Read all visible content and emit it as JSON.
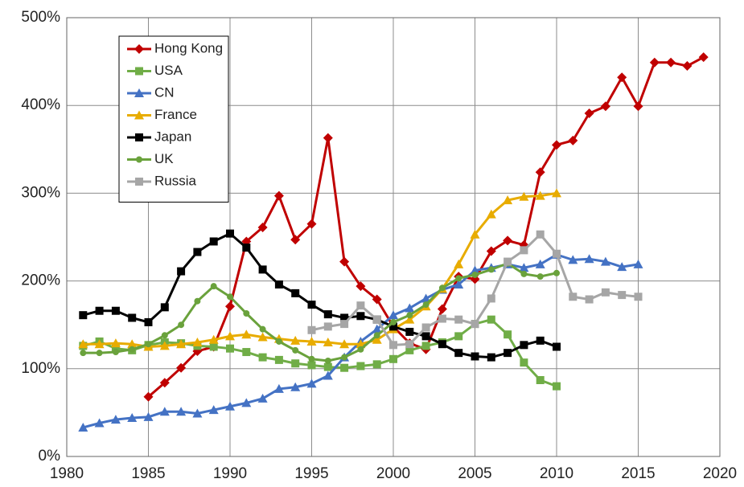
{
  "chart_data": {
    "type": "line",
    "x": [
      1981,
      1982,
      1983,
      1984,
      1985,
      1986,
      1987,
      1988,
      1989,
      1990,
      1991,
      1992,
      1993,
      1994,
      1995,
      1996,
      1997,
      1998,
      1999,
      2000,
      2001,
      2002,
      2003,
      2004,
      2005,
      2006,
      2007,
      2008,
      2009,
      2010,
      2011,
      2012,
      2013,
      2014,
      2015,
      2016,
      2017,
      2018,
      2019
    ],
    "series": [
      {
        "name": "Hong Kong",
        "color": "#c00000",
        "marker": "diamond",
        "values": [
          null,
          null,
          null,
          null,
          68,
          84,
          101,
          120,
          125,
          171,
          245,
          261,
          297,
          247,
          265,
          363,
          222,
          194,
          179,
          148,
          129,
          122,
          168,
          205,
          202,
          234,
          246,
          241,
          324,
          355,
          360,
          391,
          399,
          432,
          399,
          449,
          449,
          445,
          455
        ]
      },
      {
        "name": "USA",
        "color": "#70ad47",
        "marker": "square",
        "values": [
          126,
          131,
          123,
          121,
          127,
          130,
          129,
          126,
          125,
          123,
          119,
          113,
          110,
          106,
          104,
          102,
          101,
          103,
          105,
          111,
          121,
          126,
          130,
          137,
          151,
          156,
          139,
          107,
          87,
          80,
          null,
          null,
          null,
          null,
          null,
          null,
          null,
          null,
          null
        ]
      },
      {
        "name": "CN",
        "color": "#4472c4",
        "marker": "triangle",
        "values": [
          33,
          38,
          42,
          44,
          45,
          51,
          51,
          49,
          53,
          57,
          61,
          66,
          77,
          79,
          83,
          92,
          113,
          131,
          145,
          161,
          169,
          180,
          190,
          196,
          212,
          215,
          219,
          215,
          219,
          230,
          224,
          225,
          222,
          216,
          219,
          null,
          null,
          null,
          null
        ]
      },
      {
        "name": "France",
        "color": "#e8ac00",
        "marker": "triangle",
        "values": [
          128,
          128,
          129,
          128,
          125,
          126,
          128,
          130,
          133,
          137,
          139,
          136,
          134,
          132,
          131,
          130,
          128,
          128,
          133,
          145,
          156,
          171,
          191,
          219,
          253,
          276,
          292,
          296,
          297,
          300,
          null,
          null,
          null,
          null,
          null,
          null,
          null,
          null,
          null
        ]
      },
      {
        "name": "Japan",
        "color": "#000000",
        "marker": "square",
        "values": [
          161,
          166,
          166,
          158,
          153,
          170,
          211,
          233,
          245,
          254,
          238,
          213,
          196,
          186,
          173,
          162,
          158,
          160,
          156,
          148,
          142,
          137,
          128,
          118,
          114,
          113,
          118,
          127,
          132,
          125,
          null,
          null,
          null,
          null,
          null,
          null,
          null,
          null,
          null
        ]
      },
      {
        "name": "UK",
        "color": "#6aa23c",
        "marker": "circle",
        "values": [
          118,
          118,
          119,
          122,
          128,
          138,
          150,
          177,
          194,
          182,
          163,
          145,
          131,
          121,
          111,
          109,
          113,
          122,
          138,
          153,
          161,
          173,
          192,
          203,
          207,
          213,
          220,
          208,
          205,
          209,
          null,
          null,
          null,
          null,
          null,
          null,
          null,
          null,
          null
        ]
      },
      {
        "name": "Russia",
        "color": "#a6a6a6",
        "marker": "square",
        "values": [
          null,
          null,
          null,
          null,
          null,
          null,
          null,
          null,
          null,
          null,
          null,
          null,
          null,
          null,
          144,
          148,
          151,
          172,
          156,
          127,
          128,
          147,
          157,
          156,
          151,
          180,
          222,
          235,
          253,
          231,
          182,
          179,
          187,
          184,
          182,
          null,
          null,
          null,
          null
        ]
      }
    ],
    "xlim": [
      1980,
      2020
    ],
    "xticks": [
      1980,
      1985,
      1990,
      1995,
      2000,
      2005,
      2010,
      2015,
      2020
    ],
    "ylim": [
      0,
      500
    ],
    "yticks": [
      {
        "value": 0,
        "label": "0%"
      },
      {
        "value": 100,
        "label": "100%"
      },
      {
        "value": 200,
        "label": "200%"
      },
      {
        "value": 300,
        "label": "300%"
      },
      {
        "value": 400,
        "label": "400%"
      },
      {
        "value": 500,
        "label": "500%"
      }
    ],
    "grid": true,
    "legend": "upper left"
  }
}
